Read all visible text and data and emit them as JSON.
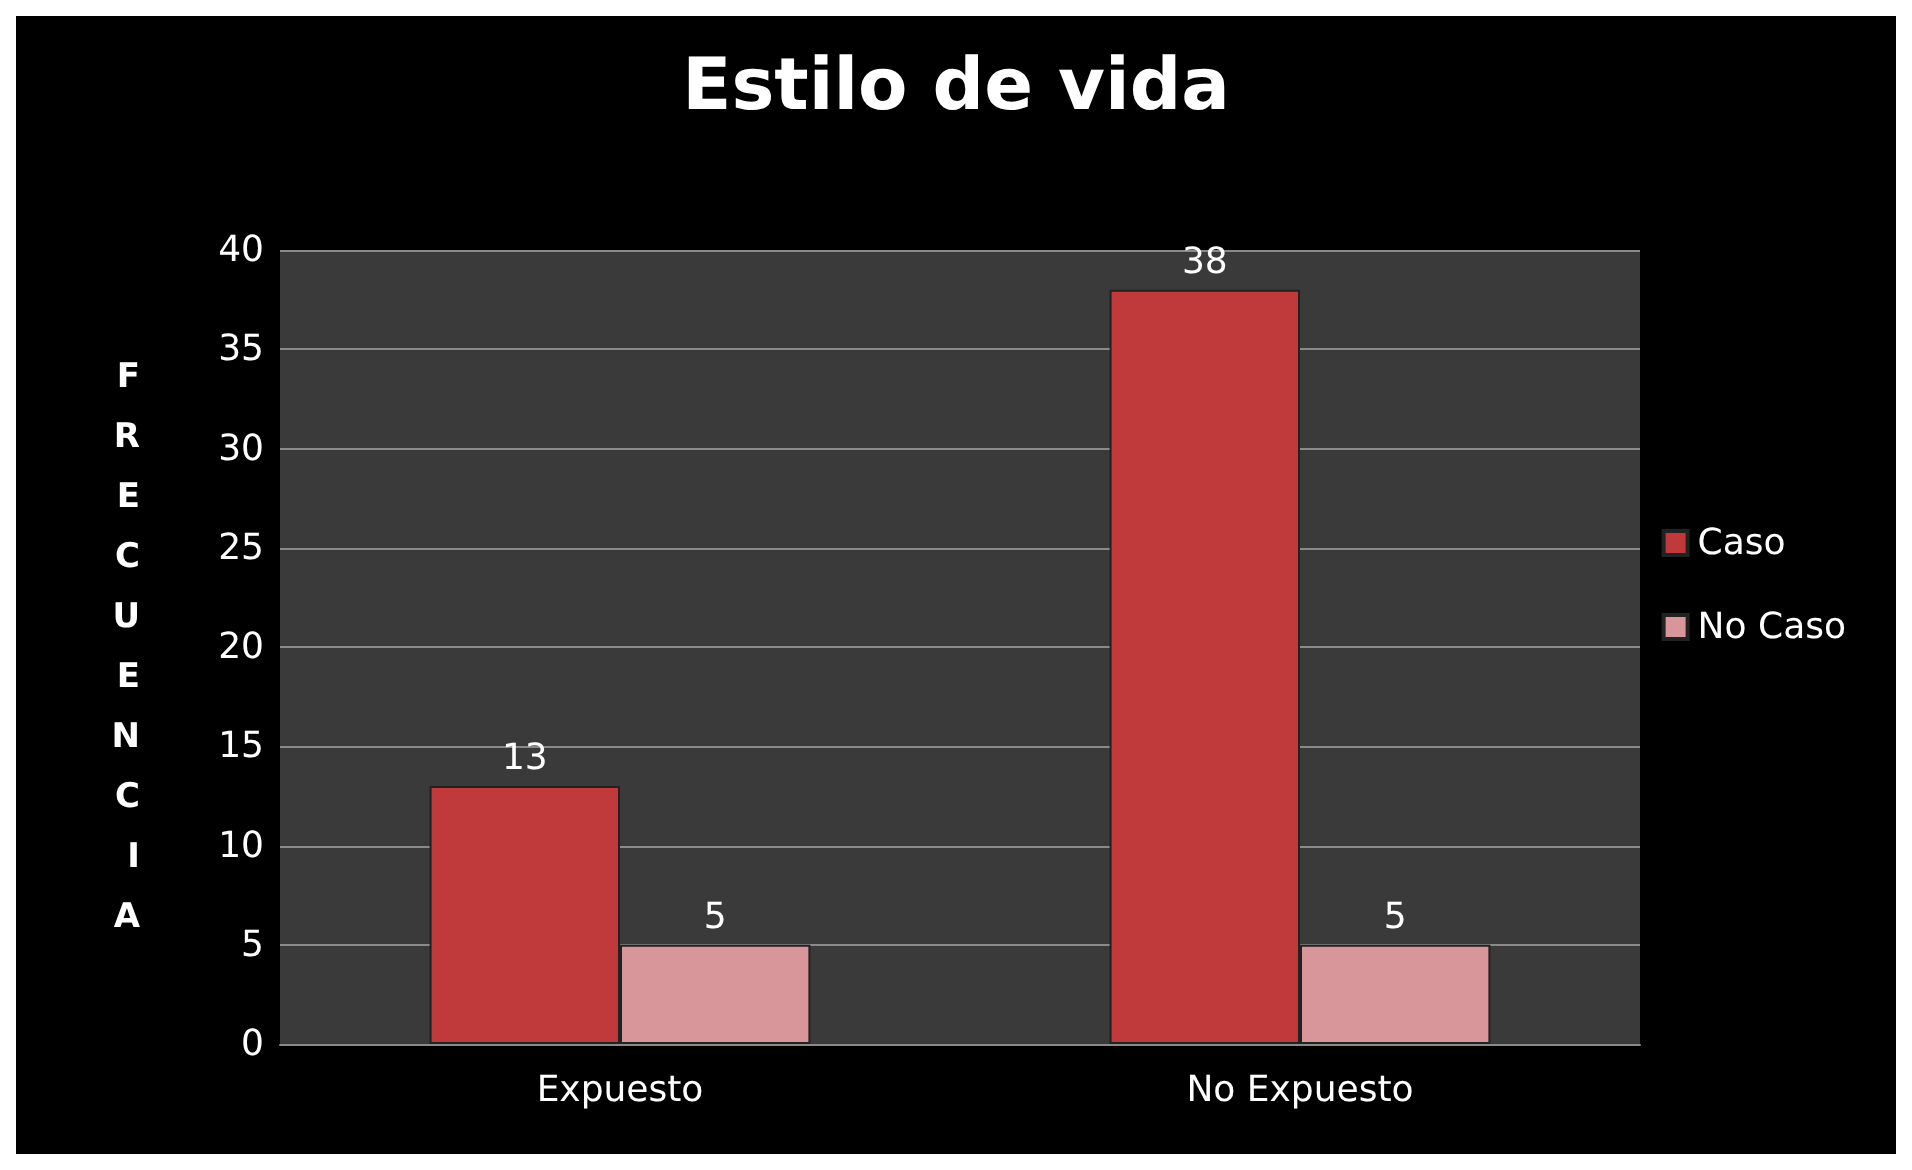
{
  "chart_data": {
    "type": "bar",
    "title": "Estilo de vida",
    "ylabel": "FRECUENCIA",
    "categories": [
      "Expuesto",
      "No Expuesto"
    ],
    "series": [
      {
        "name": "Caso",
        "color": "#c0393b",
        "values": [
          13,
          38
        ]
      },
      {
        "name": "No Caso",
        "color": "#d9969a",
        "values": [
          5,
          5
        ]
      }
    ],
    "ylim": [
      0,
      40
    ],
    "yticks": [
      0,
      5,
      10,
      15,
      20,
      25,
      30,
      35,
      40
    ],
    "grid": "y",
    "legend": "right",
    "data_labels": true
  }
}
